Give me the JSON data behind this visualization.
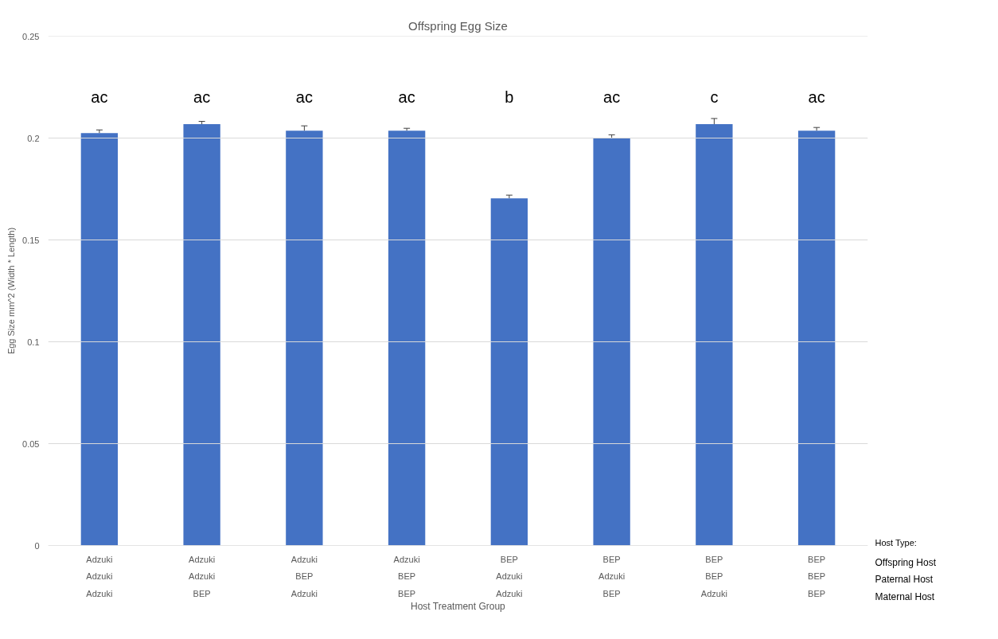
{
  "chart_data": {
    "type": "bar",
    "title": "Offspring Egg Size",
    "xlabel": "Host Treatment Group",
    "ylabel": "Egg Size mm^2 (Width * Length)",
    "categories": [
      "Adzuki\nAdzuki\nAdzuki",
      "Adzuki\nAdzuki\nBEP",
      "Adzuki\nBEP\nAdzuki",
      "Adzuki\nBEP\nBEP",
      "BEP\nAdzuki\nAdzuki",
      "BEP\nAdzuki\nBEP",
      "BEP\nBEP\nAdzuki",
      "BEP\nBEP\nBEP"
    ],
    "values": [
      0.2024,
      0.2068,
      0.2036,
      0.2036,
      0.1704,
      0.2,
      0.2068,
      0.2036
    ],
    "errors": [
      0.0016,
      0.0014,
      0.0024,
      0.0012,
      0.0016,
      0.0016,
      0.0028,
      0.0016
    ],
    "color": "#4472c4",
    "ylim": [
      0,
      0.25
    ],
    "yticks": [
      0,
      0.05,
      0.1,
      0.15,
      0.2,
      0.25
    ],
    "grid": "y",
    "annotations": [
      "ac",
      "ac",
      "ac",
      "ac",
      "b",
      "ac",
      "c",
      "ac",
      "Host Type:",
      "Offspring Host",
      "Paternal Host",
      "Maternal Host"
    ]
  }
}
